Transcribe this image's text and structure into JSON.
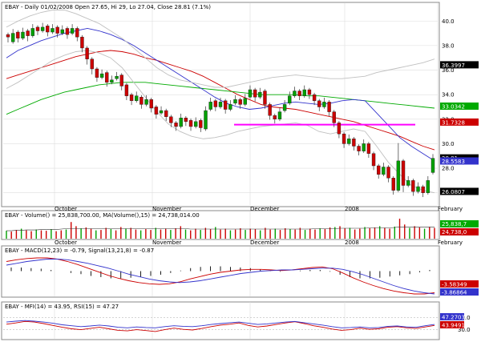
{
  "chart_data": [
    {
      "type": "candlestick",
      "title": "EBAY - Daily 01/02/2008 Open 27.65, Hi 29, Lo 27.04, Close 28.81 (7.1%)",
      "ylim": [
        25.0,
        40.8
      ],
      "y_ticks": [
        "26.0",
        "28.0",
        "30.0",
        "32.0",
        "34.0",
        "36.0",
        "38.0",
        "40.0"
      ],
      "x_labels": [
        "October",
        "November",
        "December",
        "2008",
        "February"
      ],
      "grid": true,
      "series": [
        {
          "name": "",
          "color": "#cc0000",
          "values": [
            35.3,
            35.6,
            35.9,
            36.2,
            36.5,
            36.8,
            37.1,
            37.3,
            37.5,
            37.6,
            37.5,
            37.3,
            37.0,
            36.8,
            36.5,
            36.2,
            35.9,
            35.5,
            35.0,
            34.5,
            34.0,
            33.6,
            33.2,
            33.0,
            32.9,
            32.8,
            32.6,
            32.4,
            32.2,
            32.0,
            31.8,
            31.5,
            31.2,
            30.9,
            30.6,
            30.2,
            29.8,
            29.5
          ]
        },
        {
          "name": "",
          "color": "#00aa00",
          "values": [
            32.4,
            32.8,
            33.2,
            33.6,
            33.9,
            34.2,
            34.4,
            34.6,
            34.8,
            34.9,
            35.0,
            35.0,
            35.0,
            34.9,
            34.8,
            34.7,
            34.6,
            34.5,
            34.4,
            34.3,
            34.2,
            34.1,
            34.0,
            34.0,
            34.0,
            34.0,
            33.9,
            33.9,
            33.8,
            33.7,
            33.6,
            33.5,
            33.4,
            33.3,
            33.2,
            33.1,
            33.0,
            32.9
          ]
        },
        {
          "name": "",
          "color": "#3333cc",
          "values": [
            37.0,
            37.6,
            38.0,
            38.4,
            38.7,
            39.0,
            39.2,
            39.4,
            39.2,
            38.9,
            38.5,
            38.0,
            37.4,
            36.8,
            36.2,
            35.6,
            35.0,
            34.4,
            33.8,
            33.3,
            33.0,
            32.8,
            32.9,
            33.1,
            33.3,
            33.4,
            33.3,
            33.2,
            33.3,
            33.5,
            33.6,
            33.5,
            32.5,
            31.5,
            30.5,
            29.8,
            29.2,
            28.6
          ]
        },
        {
          "name": "",
          "color": "#c0c0c0",
          "values": [
            39.5,
            40.0,
            40.4,
            40.7,
            40.9,
            40.9,
            40.6,
            40.2,
            39.8,
            39.2,
            38.6,
            37.8,
            37.0,
            36.2,
            35.6,
            35.2,
            35.0,
            34.8,
            34.6,
            34.6,
            34.8,
            35.0,
            35.2,
            35.4,
            35.5,
            35.6,
            35.5,
            35.4,
            35.3,
            35.3,
            35.4,
            35.5,
            35.8,
            36.0,
            36.2,
            36.4,
            36.6,
            36.9
          ]
        },
        {
          "name": "",
          "color": "#c0c0c0",
          "values": [
            34.5,
            35.0,
            35.6,
            36.2,
            36.8,
            37.2,
            37.5,
            37.6,
            37.4,
            37.0,
            36.2,
            35.0,
            33.8,
            32.6,
            31.6,
            31.0,
            30.6,
            30.4,
            30.5,
            30.7,
            31.0,
            31.2,
            31.4,
            31.5,
            31.6,
            31.7,
            31.5,
            31.0,
            30.8,
            31.0,
            31.2,
            31.0,
            29.8,
            28.5,
            27.5,
            26.6,
            26.2,
            26.0
          ]
        }
      ],
      "candles": [
        [
          38.9,
          38.4,
          38.7
        ],
        [
          38.3,
          39.2,
          39.0
        ],
        [
          39.1,
          38.4,
          38.6
        ],
        [
          38.6,
          39.3,
          39.1
        ],
        [
          39.2,
          38.5,
          38.8
        ],
        [
          38.8,
          39.6,
          39.4
        ],
        [
          39.5,
          39.0,
          39.2
        ],
        [
          39.2,
          39.7,
          39.5
        ],
        [
          39.6,
          38.9,
          39.1
        ],
        [
          39.1,
          39.6,
          39.4
        ],
        [
          39.5,
          38.8,
          39.0
        ],
        [
          39.0,
          39.5,
          39.3
        ],
        [
          39.4,
          38.7,
          38.9
        ],
        [
          39.0,
          39.6,
          39.4
        ],
        [
          39.4,
          38.5,
          38.7
        ],
        [
          38.7,
          37.6,
          37.8
        ],
        [
          37.8,
          36.6,
          36.9
        ],
        [
          36.9,
          35.8,
          36.1
        ],
        [
          36.1,
          35.2,
          35.4
        ],
        [
          35.4,
          35.9,
          35.7
        ],
        [
          35.8,
          34.8,
          35.0
        ],
        [
          35.0,
          35.4,
          35.2
        ],
        [
          35.3,
          35.7,
          35.5
        ],
        [
          35.6,
          34.5,
          34.7
        ],
        [
          34.8,
          33.7,
          33.9
        ],
        [
          34.0,
          33.3,
          33.5
        ],
        [
          33.5,
          34.1,
          33.9
        ],
        [
          33.8,
          33.0,
          33.2
        ],
        [
          33.2,
          33.8,
          33.6
        ],
        [
          33.6,
          32.7,
          32.9
        ],
        [
          33.0,
          32.2,
          32.4
        ],
        [
          32.5,
          32.9,
          32.7
        ],
        [
          32.7,
          32.0,
          32.2
        ],
        [
          32.2,
          31.5,
          31.7
        ],
        [
          31.7,
          31.2,
          31.4
        ],
        [
          31.4,
          32.3,
          32.1
        ],
        [
          32.1,
          31.6,
          31.8
        ],
        [
          31.9,
          31.2,
          31.4
        ],
        [
          31.4,
          32.0,
          31.8
        ],
        [
          31.9,
          31.1,
          31.3
        ],
        [
          31.2,
          32.9,
          32.7
        ],
        [
          32.8,
          33.6,
          33.4
        ],
        [
          33.5,
          32.8,
          33.0
        ],
        [
          33.0,
          33.6,
          33.4
        ],
        [
          33.5,
          32.6,
          32.8
        ],
        [
          32.8,
          33.4,
          33.2
        ],
        [
          33.3,
          33.8,
          33.6
        ],
        [
          33.6,
          33.0,
          33.2
        ],
        [
          33.2,
          33.9,
          33.7
        ],
        [
          33.8,
          34.6,
          34.4
        ],
        [
          34.4,
          33.6,
          33.8
        ],
        [
          33.8,
          34.4,
          34.2
        ],
        [
          34.3,
          33.0,
          33.2
        ],
        [
          33.2,
          32.1,
          32.3
        ],
        [
          32.3,
          31.8,
          32.0
        ],
        [
          32.0,
          32.8,
          32.6
        ],
        [
          32.7,
          33.4,
          33.2
        ],
        [
          33.3,
          34.1,
          33.9
        ],
        [
          33.9,
          34.5,
          34.3
        ],
        [
          34.3,
          33.7,
          33.9
        ],
        [
          33.9,
          34.6,
          34.4
        ],
        [
          34.4,
          33.8,
          34.0
        ],
        [
          34.0,
          33.3,
          33.5
        ],
        [
          33.5,
          32.8,
          33.0
        ],
        [
          33.0,
          33.6,
          33.4
        ],
        [
          33.4,
          32.4,
          32.6
        ],
        [
          32.6,
          31.5,
          31.7
        ],
        [
          31.7,
          30.6,
          30.8
        ],
        [
          30.8,
          29.8,
          30.0
        ],
        [
          30.0,
          30.6,
          30.4
        ],
        [
          30.4,
          29.6,
          29.8
        ],
        [
          29.8,
          29.2,
          29.4
        ],
        [
          29.4,
          30.2,
          30.0
        ],
        [
          30.0,
          29.0,
          29.2
        ],
        [
          29.2,
          28.0,
          28.2
        ],
        [
          28.2,
          27.3,
          27.5
        ],
        [
          27.5,
          28.3,
          28.1
        ],
        [
          28.1,
          27.0,
          27.2
        ],
        [
          27.2,
          26.0,
          26.2
        ],
        [
          26.2,
          29.9,
          28.6
        ],
        [
          28.6,
          26.2,
          26.6
        ],
        [
          26.6,
          27.2,
          27.0
        ],
        [
          27.0,
          25.9,
          26.1
        ],
        [
          26.1,
          26.7,
          26.5
        ],
        [
          26.5,
          25.8,
          26.0
        ],
        [
          26.0,
          27.2,
          27.0
        ],
        [
          27.65,
          29.0,
          28.81
        ]
      ],
      "annotations": [
        {
          "text": "36.3997",
          "color": "#000000",
          "y": 36.4
        },
        {
          "text": "33.0342",
          "color": "#00aa00",
          "y": 33.03
        },
        {
          "text": "31.7328",
          "color": "#cc0000",
          "y": 31.73
        },
        {
          "text": "28.81",
          "color": "#000000",
          "y": 28.81
        },
        {
          "text": "28.5583",
          "color": "#3333cc",
          "y": 28.56
        },
        {
          "text": "26.0807",
          "color": "#000000",
          "y": 26.08
        }
      ],
      "support_line": {
        "color": "#ff00ff",
        "y": 31.55
      }
    },
    {
      "type": "bar",
      "title": "EBAY - Volume() = 25,838,700.00, MA(Volume(),15) = 24,738,014.00",
      "label_right": "25,838,7",
      "label_right2": "24,738,0",
      "x_labels": [
        "October",
        "November",
        "December",
        "2008",
        "February"
      ],
      "values": [
        19,
        17,
        21,
        24,
        20,
        18,
        22,
        20,
        19,
        23,
        18,
        20,
        22,
        40,
        30,
        25,
        27,
        24,
        20,
        21,
        26,
        23,
        20,
        28,
        24,
        26,
        22,
        20,
        23,
        21,
        26,
        22,
        24,
        21,
        25,
        30,
        22,
        20,
        24,
        21,
        26,
        23,
        28,
        22,
        24,
        20,
        22,
        25,
        21,
        24,
        23,
        20,
        26,
        22,
        24,
        21,
        25,
        23,
        22,
        26,
        21,
        24,
        22,
        25,
        23,
        27,
        28,
        30,
        25,
        26,
        22,
        24,
        28,
        25,
        27,
        30,
        26,
        24,
        29,
        48,
        34,
        26,
        30,
        27,
        24,
        28,
        26
      ],
      "ma": [
        19,
        19,
        20,
        20,
        21,
        21,
        21,
        22,
        22,
        22,
        22,
        23,
        24,
        24,
        24,
        24,
        24,
        24,
        24,
        24,
        24,
        24,
        24,
        24,
        24,
        24,
        24,
        24,
        24,
        24,
        24,
        24,
        24,
        24,
        24,
        24,
        24,
        23,
        23,
        23,
        23,
        23,
        23,
        23,
        23,
        23,
        23,
        23,
        23,
        23,
        23,
        23,
        23,
        23,
        23,
        23,
        23,
        23,
        23,
        23,
        23,
        23,
        24,
        24,
        24,
        24,
        24,
        25,
        25,
        25,
        25,
        25,
        25,
        26,
        26,
        26,
        26,
        26,
        27,
        28,
        28,
        28,
        28,
        28,
        28,
        28,
        28
      ]
    },
    {
      "type": "line",
      "title": "EBAY - MACD(12,23) = -0.79, Signal(13,21,8) = -0.87",
      "ylim": [
        -4.2,
        3.0
      ],
      "series": [
        {
          "name": "MACD(12,23)",
          "color": "#cc0000",
          "values": [
            1.6,
            1.9,
            2.1,
            2.2,
            2.2,
            2.0,
            1.6,
            1.1,
            0.5,
            -0.1,
            -0.7,
            -1.2,
            -1.6,
            -1.9,
            -2.1,
            -2.2,
            -2.1,
            -1.8,
            -1.3,
            -0.9,
            -0.5,
            -0.2,
            0.0,
            0.2,
            0.3,
            0.3,
            0.2,
            0.1,
            0.2,
            0.4,
            0.6,
            0.7,
            0.4,
            -0.3,
            -1.1,
            -1.8,
            -2.4,
            -2.9,
            -3.3,
            -3.6,
            -3.8,
            -3.8,
            -3.6
          ]
        },
        {
          "name": "Signal(13,21,8)",
          "color": "#3333cc",
          "values": [
            1.0,
            1.3,
            1.6,
            1.8,
            2.0,
            2.0,
            1.9,
            1.6,
            1.3,
            0.9,
            0.5,
            0.0,
            -0.5,
            -0.9,
            -1.3,
            -1.6,
            -1.8,
            -1.9,
            -1.8,
            -1.6,
            -1.3,
            -1.0,
            -0.7,
            -0.4,
            -0.2,
            0.0,
            0.1,
            0.2,
            0.2,
            0.3,
            0.4,
            0.5,
            0.5,
            0.3,
            -0.1,
            -0.6,
            -1.2,
            -1.8,
            -2.4,
            -2.9,
            -3.3,
            -3.6,
            -3.8
          ]
        }
      ],
      "histogram": [
        0.6,
        0.6,
        0.5,
        0.4,
        0.2,
        0.0,
        -0.3,
        -0.5,
        -0.8,
        -1.0,
        -1.2,
        -1.2,
        -1.1,
        -1.0,
        -0.8,
        -0.6,
        -0.3,
        0.1,
        0.5,
        0.7,
        0.8,
        0.8,
        0.7,
        0.6,
        0.5,
        0.3,
        0.1,
        -0.1,
        0.0,
        0.1,
        0.2,
        0.2,
        -0.1,
        -0.6,
        -1.0,
        -1.2,
        -1.2,
        -1.1,
        -0.9,
        -0.7,
        -0.5,
        -0.2,
        0.2
      ],
      "annotations": [
        {
          "text": "-3.58349",
          "color": "#cc0000"
        },
        {
          "text": "-3.86864",
          "color": "#3333cc"
        }
      ]
    },
    {
      "type": "line",
      "title": "EBAY - MFI(14) = 43.95, RSI(15) = 47.27",
      "ylim": [
        0,
        100
      ],
      "y_ticks": [
        "70.0",
        "30.0"
      ],
      "series": [
        {
          "name": "MFI(14)",
          "color": "#cc0000",
          "values": [
            48,
            52,
            57,
            55,
            50,
            44,
            38,
            33,
            30,
            34,
            38,
            33,
            28,
            26,
            30,
            27,
            24,
            30,
            35,
            31,
            29,
            34,
            40,
            45,
            48,
            52,
            44,
            39,
            42,
            47,
            52,
            56,
            50,
            43,
            38,
            32,
            28,
            30,
            35,
            31,
            33,
            38,
            40,
            36,
            34,
            39,
            44
          ]
        },
        {
          "name": "RSI(15)",
          "color": "#3333cc",
          "values": [
            55,
            58,
            60,
            58,
            55,
            51,
            46,
            43,
            40,
            42,
            45,
            42,
            38,
            36,
            39,
            37,
            36,
            40,
            43,
            41,
            40,
            43,
            47,
            50,
            53,
            55,
            51,
            47,
            49,
            52,
            55,
            57,
            53,
            49,
            45,
            40,
            36,
            37,
            39,
            36,
            37,
            41,
            42,
            39,
            38,
            43,
            47
          ]
        }
      ],
      "annotations": [
        {
          "text": "47.2703",
          "color": "#3333cc"
        },
        {
          "text": "43.9491",
          "color": "#cc0000"
        }
      ]
    }
  ]
}
